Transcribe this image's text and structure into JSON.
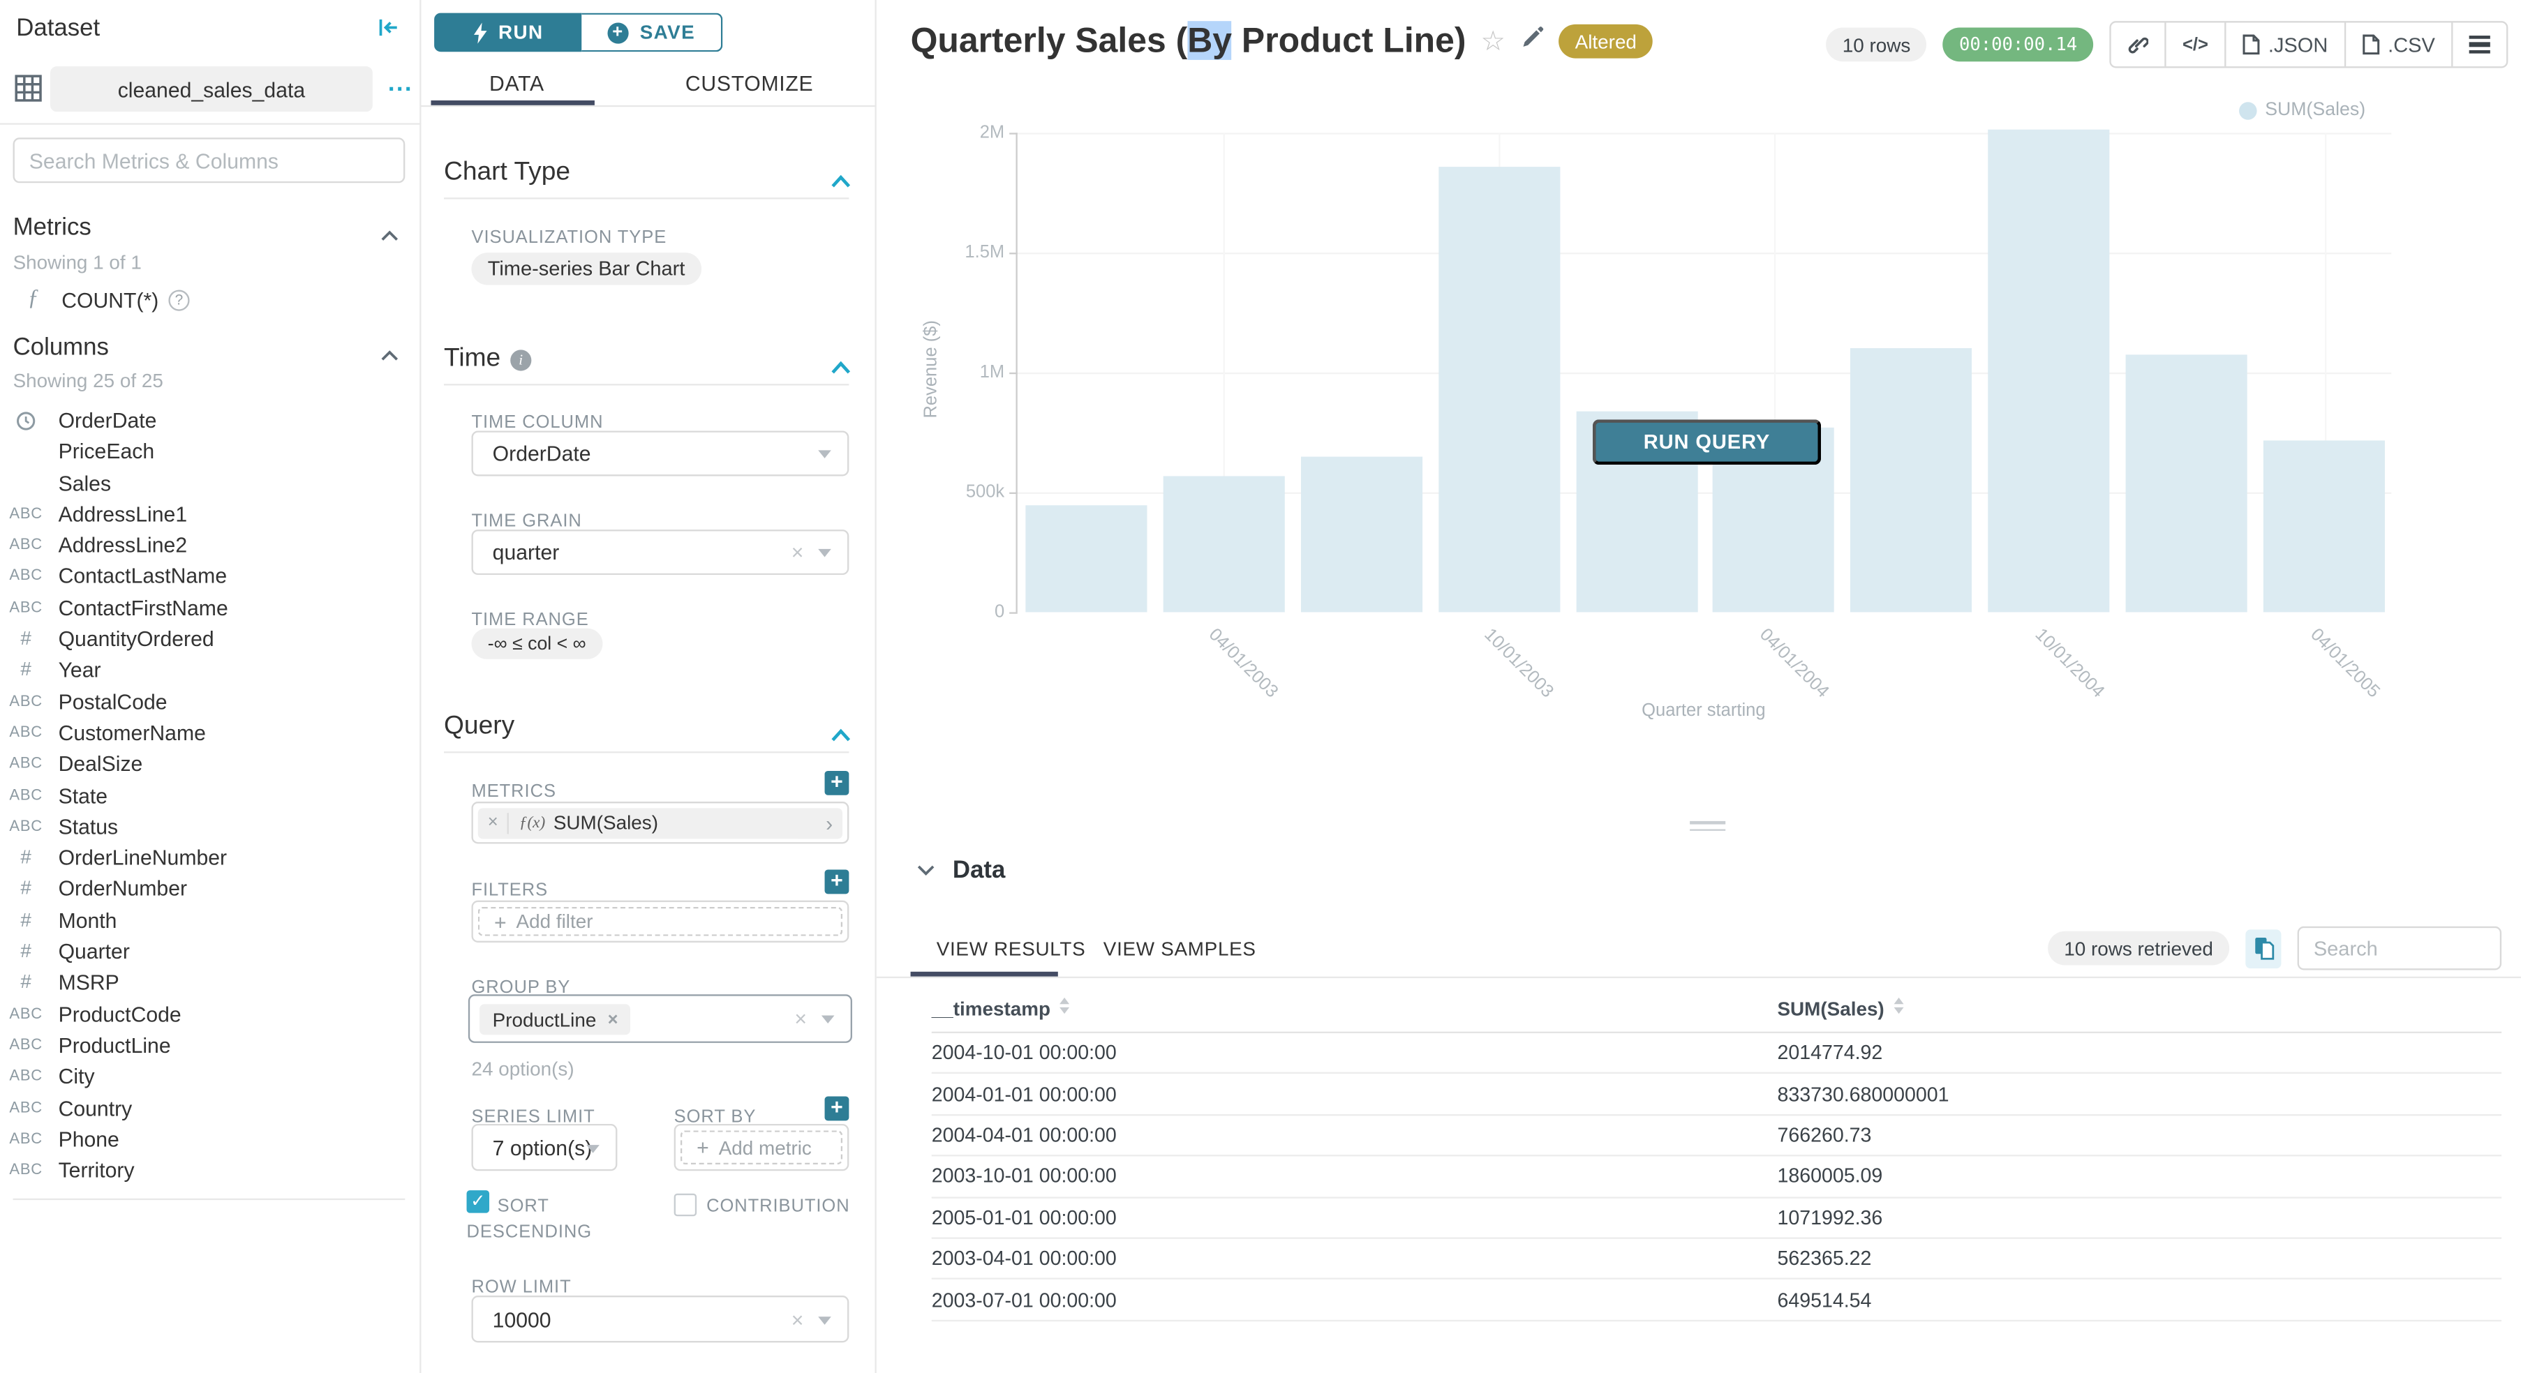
{
  "colors": {
    "primary": "#20a7c9",
    "button_teal": "#2e7d95",
    "run_query_button": "#3f7f96",
    "tab_underline": "#434b63",
    "badge_altered": "#bda23b",
    "timer_green": "#74b77f",
    "bar_fill": "#dcebf2",
    "legend_dot": "#cfe4ee",
    "title_selection": "#b5d5fa"
  },
  "sidebar": {
    "title": "Dataset",
    "dataset_name": "cleaned_sales_data",
    "more_label": "...",
    "search_placeholder": "Search Metrics & Columns",
    "metrics": {
      "title": "Metrics",
      "showing": "Showing 1 of 1",
      "items": [
        {
          "icon": "function",
          "label": "COUNT(*)"
        }
      ]
    },
    "columns": {
      "title": "Columns",
      "showing": "Showing 25 of 25",
      "items": [
        {
          "icon": "clock",
          "label": "OrderDate"
        },
        {
          "icon": "none",
          "label": "PriceEach"
        },
        {
          "icon": "none",
          "label": "Sales"
        },
        {
          "icon": "abc",
          "label": "AddressLine1"
        },
        {
          "icon": "abc",
          "label": "AddressLine2"
        },
        {
          "icon": "abc",
          "label": "ContactLastName"
        },
        {
          "icon": "abc",
          "label": "ContactFirstName"
        },
        {
          "icon": "hash",
          "label": "QuantityOrdered"
        },
        {
          "icon": "hash",
          "label": "Year"
        },
        {
          "icon": "abc",
          "label": "PostalCode"
        },
        {
          "icon": "abc",
          "label": "CustomerName"
        },
        {
          "icon": "abc",
          "label": "DealSize"
        },
        {
          "icon": "abc",
          "label": "State"
        },
        {
          "icon": "abc",
          "label": "Status"
        },
        {
          "icon": "hash",
          "label": "OrderLineNumber"
        },
        {
          "icon": "hash",
          "label": "OrderNumber"
        },
        {
          "icon": "hash",
          "label": "Month"
        },
        {
          "icon": "hash",
          "label": "Quarter"
        },
        {
          "icon": "hash",
          "label": "MSRP"
        },
        {
          "icon": "abc",
          "label": "ProductCode"
        },
        {
          "icon": "abc",
          "label": "ProductLine"
        },
        {
          "icon": "abc",
          "label": "City"
        },
        {
          "icon": "abc",
          "label": "Country"
        },
        {
          "icon": "abc",
          "label": "Phone"
        },
        {
          "icon": "abc",
          "label": "Territory"
        }
      ]
    }
  },
  "panel": {
    "run_label": "RUN",
    "save_label": "SAVE",
    "tabs": {
      "data": "DATA",
      "customize": "CUSTOMIZE"
    },
    "chart_type": {
      "title": "Chart Type",
      "viz_label": "VISUALIZATION TYPE",
      "value": "Time-series Bar Chart"
    },
    "time": {
      "title": "Time",
      "column_label": "TIME COLUMN",
      "column_value": "OrderDate",
      "grain_label": "TIME GRAIN",
      "grain_value": "quarter",
      "range_label": "TIME RANGE",
      "range_value": "-∞ ≤ col < ∞"
    },
    "query": {
      "title": "Query",
      "metrics_label": "METRICS",
      "metric_prefix": "ƒ(x)",
      "metric_value": "SUM(Sales)",
      "filters_label": "FILTERS",
      "add_filter": "Add filter",
      "group_by_label": "GROUP BY",
      "group_by_value": "ProductLine",
      "group_by_hint": "24 option(s)",
      "series_limit_label": "SERIES LIMIT",
      "series_limit_value": "7 option(s)",
      "sort_by_label": "SORT BY",
      "add_metric": "Add metric",
      "sort_descending_label": "SORT DESCENDING",
      "contribution_label": "CONTRIBUTION",
      "row_limit_label": "ROW LIMIT",
      "row_limit_value": "10000"
    }
  },
  "header": {
    "title_prefix": "Quarterly Sales (",
    "title_selected": "By",
    "title_suffix": " Product Line)",
    "badge": "Altered",
    "rows_pill": "10 rows",
    "timer": "00:00:00.14",
    "code_label": "</>",
    "export_json": ".JSON",
    "export_csv": ".CSV"
  },
  "chart": {
    "legend": "SUM(Sales)",
    "ylabel": "Revenue ($)",
    "xlabel": "Quarter starting",
    "run_query_label": "RUN QUERY"
  },
  "chart_data": {
    "type": "bar",
    "title": "Quarterly Sales (By Product Line)",
    "xlabel": "Quarter starting",
    "ylabel": "Revenue ($)",
    "ylim": [
      0,
      2000000
    ],
    "grid": true,
    "legend": [
      "SUM(Sales)"
    ],
    "legend_position": "top-right",
    "y_ticks": [
      {
        "label": "0",
        "value": 0
      },
      {
        "label": "500k",
        "value": 500000
      },
      {
        "label": "1M",
        "value": 1000000
      },
      {
        "label": "1.5M",
        "value": 1500000
      },
      {
        "label": "2M",
        "value": 2000000
      }
    ],
    "x": [
      "2003-01-01",
      "2003-04-01",
      "2003-07-01",
      "2003-10-01",
      "2004-01-01",
      "2004-04-01",
      "2004-07-01",
      "2004-10-01",
      "2005-01-01",
      "2005-04-01"
    ],
    "x_tick_labels": {
      "1": "04/01/2003",
      "3": "10/01/2003",
      "5": "04/01/2004",
      "7": "10/01/2004",
      "9": "04/01/2005"
    },
    "series": [
      {
        "name": "SUM(Sales)",
        "values": [
          445000,
          562365.22,
          649514.54,
          1860005.09,
          833730.68,
          766260.73,
          1100000,
          2014774.92,
          1071992.36,
          717000
        ]
      }
    ]
  },
  "data_panel": {
    "title": "Data",
    "tabs": {
      "results": "VIEW RESULTS",
      "samples": "VIEW SAMPLES"
    },
    "rows_pill": "10 rows retrieved",
    "search_placeholder": "Search",
    "columns": [
      "__timestamp",
      "SUM(Sales)"
    ],
    "rows": [
      [
        "2004-10-01 00:00:00",
        "2014774.92"
      ],
      [
        "2004-01-01 00:00:00",
        "833730.680000001"
      ],
      [
        "2004-04-01 00:00:00",
        "766260.73"
      ],
      [
        "2003-10-01 00:00:00",
        "1860005.09"
      ],
      [
        "2005-01-01 00:00:00",
        "1071992.36"
      ],
      [
        "2003-04-01 00:00:00",
        "562365.22"
      ],
      [
        "2003-07-01 00:00:00",
        "649514.54"
      ]
    ]
  }
}
